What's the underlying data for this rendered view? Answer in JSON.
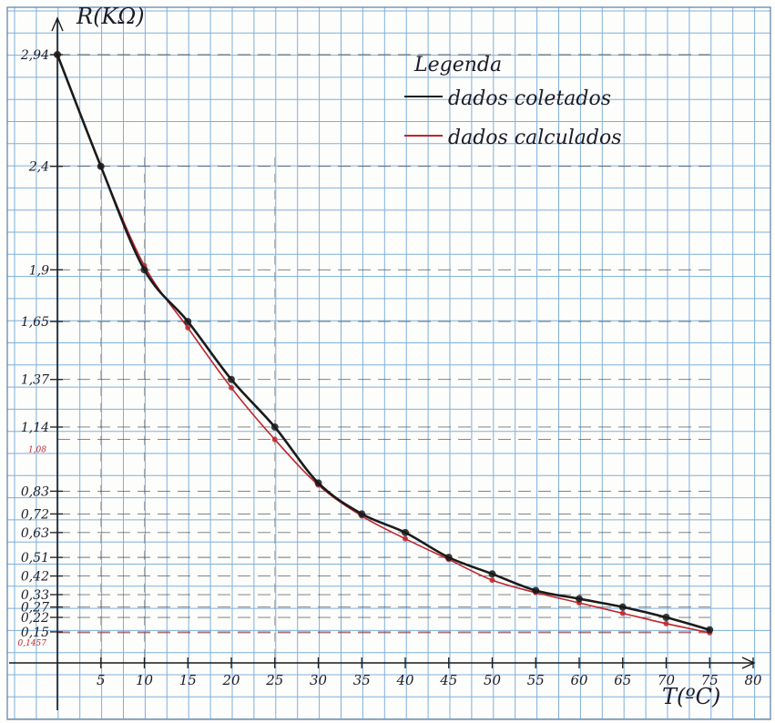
{
  "chart_data": {
    "type": "line",
    "ylabel": "R(KΩ)",
    "xlabel": "T(ºC)",
    "legend": {
      "title": "Legenda",
      "position": "top-right",
      "entries": [
        "dados coletados",
        "dados calculados"
      ]
    },
    "grid": true,
    "xlim": [
      0,
      80
    ],
    "ylim": [
      0,
      3
    ],
    "x_ticks": [
      5,
      10,
      15,
      20,
      25,
      30,
      35,
      40,
      45,
      50,
      55,
      60,
      65,
      70,
      75,
      80
    ],
    "x_tick_labels": [
      "5",
      "10",
      "15",
      "20",
      "25",
      "30",
      "35",
      "40",
      "45",
      "50",
      "55",
      "60",
      "65",
      "70",
      "75",
      "80"
    ],
    "y_ticks": [
      2.94,
      2.4,
      1.9,
      1.65,
      1.37,
      1.14,
      0.83,
      0.72,
      0.63,
      0.51,
      0.42,
      0.33,
      0.27,
      0.22,
      0.15
    ],
    "y_tick_labels": [
      "2,94",
      "2,4",
      "1,9",
      "1,65",
      "1,37",
      "1,14",
      "0,83",
      "0,72",
      "0,63",
      "0,51",
      "0,42",
      "0,33",
      "0,27",
      "0,22",
      "0,15"
    ],
    "red_tick_labels": [
      {
        "y": 1.08,
        "label": "1,08"
      },
      {
        "y": 0.1457,
        "label": "0,1457"
      }
    ],
    "series": [
      {
        "name": "dados coletados",
        "color": "#1a1a1a",
        "x": [
          0,
          5,
          10,
          15,
          20,
          25,
          30,
          35,
          40,
          45,
          50,
          55,
          60,
          65,
          70,
          75
        ],
        "y": [
          2.94,
          2.4,
          1.9,
          1.65,
          1.37,
          1.14,
          0.87,
          0.72,
          0.63,
          0.51,
          0.43,
          0.35,
          0.31,
          0.27,
          0.22,
          0.16
        ]
      },
      {
        "name": "dados calculados",
        "color": "#c0242c",
        "x": [
          0,
          5,
          10,
          15,
          20,
          25,
          30,
          35,
          40,
          45,
          50,
          55,
          60,
          65,
          70,
          75
        ],
        "y": [
          2.94,
          2.4,
          1.92,
          1.62,
          1.33,
          1.08,
          0.86,
          0.71,
          0.6,
          0.5,
          0.4,
          0.34,
          0.29,
          0.24,
          0.19,
          0.1457
        ]
      }
    ]
  }
}
